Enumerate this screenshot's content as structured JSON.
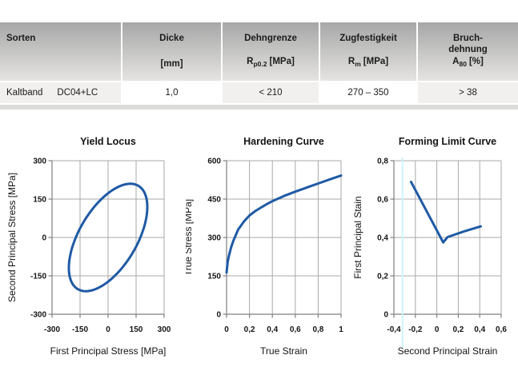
{
  "table": {
    "header": {
      "sorten": {
        "title": "Sorten"
      },
      "dicke": {
        "title": "Dicke",
        "unit": "[mm]"
      },
      "dehngrenze": {
        "title": "Dehngrenze",
        "sym": "R",
        "sub": "p0.2",
        "unit": "[MPa]"
      },
      "zugfestigkeit": {
        "title": "Zugfestigkeit",
        "sym": "R",
        "sub": "m",
        "unit": "[MPa]"
      },
      "bruchdehnung": {
        "title_line1": "Bruch-",
        "title_line2": "dehnung",
        "sym": "A",
        "sub": "80",
        "unit": "[%]"
      }
    },
    "row": {
      "grade_type": "Kaltband",
      "grade_name": "DC04+LC",
      "thickness": "1,0",
      "yield_strength": "< 210",
      "tensile_strength": "270 – 350",
      "elongation": "> 38"
    }
  },
  "colors": {
    "curve": "#1f5aa5",
    "grid": "#a9a9a9",
    "axis": "#7f7f7f",
    "guide_line": "#cdf3f9",
    "header_gradient_top": "#a7a7a7",
    "header_gradient_bottom": "#e5e4e2",
    "row_shaded": "#f1f0ee",
    "table_bottom_strip": "#dcdcdb"
  },
  "chart_data": [
    {
      "type": "line",
      "title": "Yield Locus",
      "xlabel": "First Principal Stress [MPa]",
      "ylabel": "Second Principal Stress [MPa]",
      "xlim": [
        -300,
        300
      ],
      "ylim": [
        -300,
        300
      ],
      "grid": true,
      "legend": "none",
      "xticks": [
        {
          "v": -300,
          "label": "-300"
        },
        {
          "v": -150,
          "label": "-150"
        },
        {
          "v": 0,
          "label": "0"
        },
        {
          "v": 150,
          "label": "150"
        },
        {
          "v": 300,
          "label": "300"
        }
      ],
      "yticks": [
        {
          "v": 300,
          "label": "300"
        },
        {
          "v": 150,
          "label": "150"
        },
        {
          "v": 0,
          "label": "0"
        },
        {
          "v": -150,
          "label": "-150"
        },
        {
          "v": -300,
          "label": "-300"
        }
      ],
      "series": [
        {
          "name": "yield locus",
          "shape": "ellipse",
          "ellipse": {
            "cx": 0,
            "cy": 0,
            "semi_major": 263,
            "semi_minor": 138,
            "rotation_deg": 45
          },
          "key_points": [
            [
              210,
              119
            ],
            [
              119,
              210
            ],
            [
              -210,
              -119
            ],
            [
              -119,
              -210
            ],
            [
              186,
              186
            ],
            [
              -186,
              -186
            ]
          ]
        }
      ]
    },
    {
      "type": "line",
      "title": "Hardening Curve",
      "xlabel": "True Strain",
      "ylabel": "True Stress [MPa]",
      "xlim": [
        0,
        1
      ],
      "ylim": [
        0,
        600
      ],
      "grid": true,
      "legend": "none",
      "xticks": [
        {
          "v": 0,
          "label": "0"
        },
        {
          "v": 0.2,
          "label": "0,2"
        },
        {
          "v": 0.4,
          "label": "0,4"
        },
        {
          "v": 0.6,
          "label": "0,6"
        },
        {
          "v": 0.8,
          "label": "0,8"
        },
        {
          "v": 1,
          "label": "1"
        }
      ],
      "yticks": [
        {
          "v": 0,
          "label": "0"
        },
        {
          "v": 150,
          "label": "150"
        },
        {
          "v": 300,
          "label": "300"
        },
        {
          "v": 450,
          "label": "450"
        },
        {
          "v": 600,
          "label": "600"
        }
      ],
      "series": [
        {
          "name": "hardening curve",
          "points": [
            [
              0,
              163
            ],
            [
              0.01,
              205
            ],
            [
              0.02,
              228
            ],
            [
              0.04,
              262
            ],
            [
              0.06,
              288
            ],
            [
              0.08,
              308
            ],
            [
              0.1,
              330
            ],
            [
              0.15,
              362
            ],
            [
              0.2,
              386
            ],
            [
              0.25,
              403
            ],
            [
              0.3,
              417
            ],
            [
              0.35,
              430
            ],
            [
              0.4,
              442
            ],
            [
              0.5,
              462
            ],
            [
              0.6,
              479
            ],
            [
              0.7,
              495
            ],
            [
              0.8,
              511
            ],
            [
              0.9,
              527
            ],
            [
              1.0,
              542
            ]
          ]
        }
      ]
    },
    {
      "type": "line",
      "title": "Forming Limit Curve",
      "xlabel": "Second Principal Strain",
      "ylabel": "First Principal Stain",
      "xlim": [
        -0.4,
        0.6
      ],
      "ylim": [
        0,
        0.8
      ],
      "grid": true,
      "legend": "none",
      "guide_line_x": -0.32,
      "xticks": [
        {
          "v": -0.4,
          "label": "-0,4"
        },
        {
          "v": -0.2,
          "label": "-0,2"
        },
        {
          "v": 0,
          "label": "0"
        },
        {
          "v": 0.2,
          "label": "0,2"
        },
        {
          "v": 0.4,
          "label": "0,4"
        },
        {
          "v": 0.6,
          "label": "0,6"
        }
      ],
      "yticks": [
        {
          "v": 0,
          "label": "0"
        },
        {
          "v": 0.2,
          "label": "0,2"
        },
        {
          "v": 0.4,
          "label": "0,4"
        },
        {
          "v": 0.6,
          "label": "0,6"
        },
        {
          "v": 0.8,
          "label": "0,8"
        }
      ],
      "series": [
        {
          "name": "forming limit curve",
          "points": [
            [
              -0.24,
              0.69
            ],
            [
              0.06,
              0.374
            ],
            [
              0.1,
              0.402
            ],
            [
              0.25,
              0.431
            ],
            [
              0.41,
              0.458
            ]
          ]
        }
      ]
    }
  ]
}
